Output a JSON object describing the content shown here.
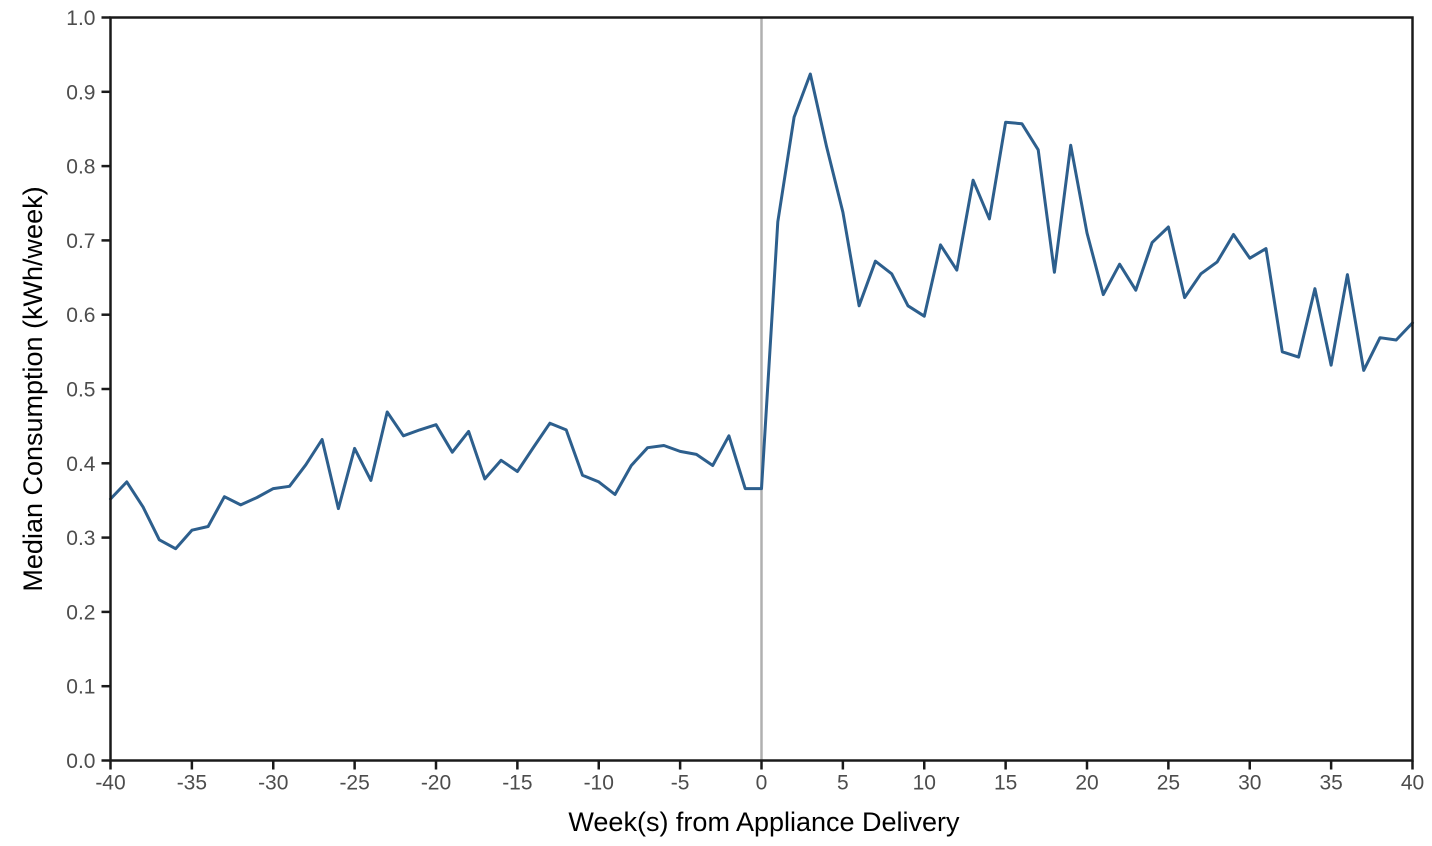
{
  "chart_data": {
    "type": "line",
    "title": "",
    "xlabel": "Week(s) from Appliance Delivery",
    "ylabel": "Median Consumption (kWh/week)",
    "xlim": [
      -40,
      40
    ],
    "ylim": [
      0.0,
      1.0
    ],
    "x_ticks": [
      -40,
      -35,
      -30,
      -25,
      -20,
      -15,
      -10,
      -5,
      0,
      5,
      10,
      15,
      20,
      25,
      30,
      35,
      40
    ],
    "y_ticks": [
      0.0,
      0.1,
      0.2,
      0.3,
      0.4,
      0.5,
      0.6,
      0.7,
      0.8,
      0.9,
      1.0
    ],
    "grid": false,
    "legend": "none",
    "reference_line": {
      "axis": "x",
      "value": 0
    },
    "series": [
      {
        "name": "Median Consumption",
        "x": [
          -40,
          -39,
          -38,
          -37,
          -36,
          -35,
          -34,
          -33,
          -32,
          -31,
          -30,
          -29,
          -28,
          -27,
          -26,
          -25,
          -24,
          -23,
          -22,
          -21,
          -20,
          -19,
          -18,
          -17,
          -16,
          -15,
          -14,
          -13,
          -12,
          -11,
          -10,
          -9,
          -8,
          -7,
          -6,
          -5,
          -4,
          -3,
          -2,
          -1,
          0,
          1,
          2,
          3,
          4,
          5,
          6,
          7,
          8,
          9,
          10,
          11,
          12,
          13,
          14,
          15,
          16,
          17,
          18,
          19,
          20,
          21,
          22,
          23,
          24,
          25,
          26,
          27,
          28,
          29,
          30,
          31,
          32,
          33,
          34,
          35,
          36,
          37,
          38,
          39,
          40
        ],
        "y": [
          0.352,
          0.375,
          0.341,
          0.297,
          0.285,
          0.31,
          0.315,
          0.355,
          0.344,
          0.354,
          0.366,
          0.369,
          0.398,
          0.432,
          0.339,
          0.42,
          0.377,
          0.469,
          0.437,
          0.445,
          0.452,
          0.415,
          0.443,
          0.379,
          0.404,
          0.389,
          0.422,
          0.454,
          0.445,
          0.384,
          0.375,
          0.358,
          0.397,
          0.421,
          0.424,
          0.416,
          0.412,
          0.397,
          0.437,
          0.366,
          0.366,
          0.725,
          0.866,
          0.924,
          0.826,
          0.738,
          0.612,
          0.672,
          0.655,
          0.612,
          0.598,
          0.694,
          0.66,
          0.781,
          0.729,
          0.859,
          0.857,
          0.822,
          0.657,
          0.828,
          0.71,
          0.627,
          0.668,
          0.633,
          0.697,
          0.718,
          0.623,
          0.655,
          0.671,
          0.708,
          0.676,
          0.689,
          0.55,
          0.543,
          0.635,
          0.532,
          0.654,
          0.525,
          0.569,
          0.566,
          0.589
        ]
      }
    ]
  },
  "colors": {
    "line": "#2d5f8d",
    "reference_line": "#b0b0b0",
    "panel_border": "#1a1a1a",
    "tick_mark": "#1a1a1a",
    "tick_label": "#4d4d4d",
    "axis_title": "#000000",
    "background": "#ffffff"
  }
}
